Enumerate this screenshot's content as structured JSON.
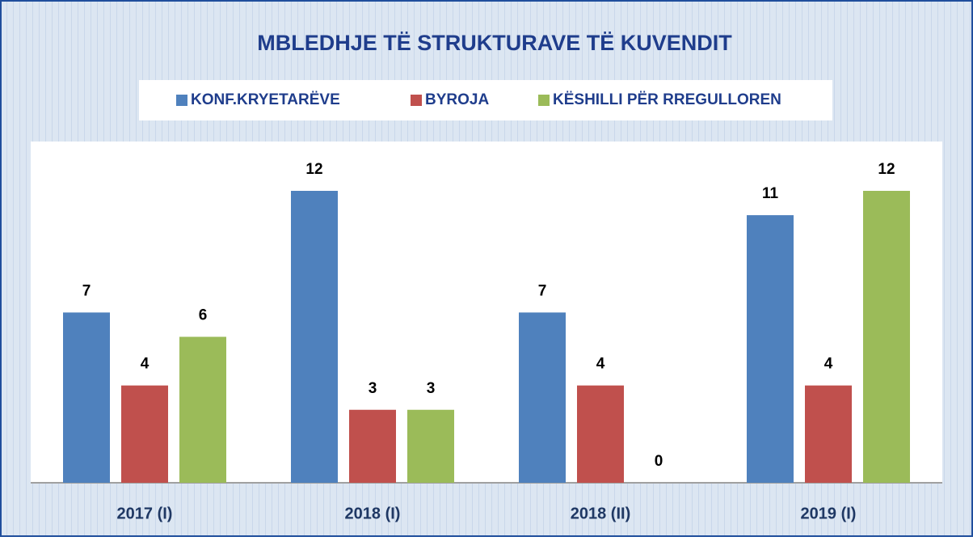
{
  "chart_data": {
    "type": "bar",
    "title": "MBLEDHJE TË STRUKTURAVE TË KUVENDIT",
    "categories": [
      "2017 (I)",
      "2018 (I)",
      "2018 (II)",
      "2019 (I)"
    ],
    "series": [
      {
        "name": "KONF.KRYETARËVE",
        "color": "#4f81bd",
        "values": [
          7,
          12,
          7,
          11
        ]
      },
      {
        "name": "BYROJA",
        "color": "#c0504d",
        "values": [
          4,
          3,
          4,
          4
        ]
      },
      {
        "name": "KËSHILLI PËR RREGULLOREN",
        "color": "#9bbb59",
        "values": [
          6,
          3,
          0,
          12
        ]
      }
    ],
    "legend": "top"
  }
}
